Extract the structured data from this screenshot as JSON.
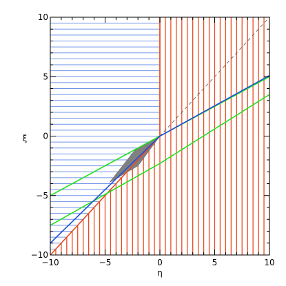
{
  "chart_data": {
    "type": "line",
    "xlabel": "η",
    "ylabel": "ξ",
    "xlim": [
      -10,
      10
    ],
    "ylim": [
      -10,
      10
    ],
    "x_ticks": [
      -10,
      -5,
      0,
      5,
      10
    ],
    "y_ticks": [
      -10,
      -5,
      0,
      5,
      10
    ],
    "x_tick_labels": [
      "−10",
      "−5",
      "0",
      "5",
      "10"
    ],
    "y_tick_labels": [
      "−10",
      "−5",
      "0",
      "5",
      "10"
    ],
    "grid": false,
    "colors": {
      "blue_hatch": "#6f93e8",
      "red_hatch": "#e8491e",
      "green": "#22e022",
      "blue": "#1f4fd8",
      "shaded_region": "#808080",
      "reference": "#555555"
    },
    "series": [
      {
        "style": "dashed",
        "color_key": "reference",
        "x": [
          -10,
          10
        ],
        "y": [
          -10,
          10
        ]
      },
      {
        "style": "solid",
        "color_key": "red_hatch",
        "x": [
          -10,
          0,
          0
        ],
        "y": [
          -10,
          0,
          10
        ]
      },
      {
        "style": "solid",
        "color_key": "green",
        "x": [
          -10,
          0,
          10
        ],
        "y": [
          -5,
          0,
          5
        ]
      },
      {
        "style": "solid",
        "color_key": "green",
        "x": [
          -10,
          0,
          10
        ],
        "y": [
          -7.5,
          -2.3,
          3.5
        ]
      },
      {
        "style": "solid",
        "color_key": "blue",
        "x": [
          -10,
          0,
          10
        ],
        "y": [
          -9,
          0,
          5.1
        ]
      }
    ],
    "regions": [
      {
        "kind": "horizontal-hatch",
        "color_key": "blue_hatch",
        "x_range": [
          -10,
          0
        ],
        "y_start": -9.5,
        "y_end": 10,
        "y_step": 0.5,
        "lower_bound": "y = x"
      },
      {
        "kind": "vertical-hatch",
        "color_key": "red_hatch",
        "x_start": -9.5,
        "x_end": 10,
        "x_step": 0.5,
        "lower_bound": "y = -10",
        "upper_bound": "y = x for x < 0, y = 10 for x >= 0"
      },
      {
        "kind": "filled",
        "color_key": "shaded_region",
        "x": [
          0,
          -2.3,
          -4.6,
          -2.0
        ],
        "y": [
          0,
          -1.2,
          -3.9,
          -2.5
        ]
      }
    ]
  }
}
